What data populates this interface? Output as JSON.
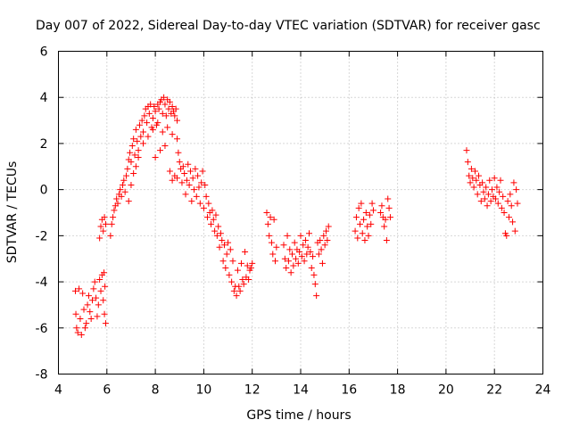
{
  "chart_data": {
    "type": "scatter",
    "title": "Day 007 of 2022, Sidereal Day-to-day VTEC variation (SDTVAR) for receiver gasc",
    "xlabel": "GPS time / hours",
    "ylabel": "SDTVAR / TECUs",
    "xlim": [
      4,
      24
    ],
    "ylim": [
      -8,
      6
    ],
    "xticks": [
      4,
      6,
      8,
      10,
      12,
      14,
      16,
      18,
      20,
      22,
      24
    ],
    "yticks": [
      -8,
      -6,
      -4,
      -2,
      0,
      2,
      4,
      6
    ],
    "grid": true,
    "marker": "plus",
    "marker_color": "#ff0000",
    "series": [
      {
        "name": "SDTVAR",
        "points": [
          [
            4.7,
            -4.4
          ],
          [
            4.72,
            -5.4
          ],
          [
            4.75,
            -6.0
          ],
          [
            4.8,
            -6.2
          ],
          [
            4.85,
            -4.3
          ],
          [
            4.9,
            -5.6
          ],
          [
            4.95,
            -6.3
          ],
          [
            5.0,
            -4.5
          ],
          [
            5.05,
            -5.2
          ],
          [
            5.1,
            -6.0
          ],
          [
            5.15,
            -5.8
          ],
          [
            5.2,
            -5.0
          ],
          [
            5.25,
            -4.6
          ],
          [
            5.3,
            -5.3
          ],
          [
            5.35,
            -5.6
          ],
          [
            5.4,
            -4.8
          ],
          [
            5.45,
            -4.3
          ],
          [
            5.5,
            -4.0
          ],
          [
            5.55,
            -4.7
          ],
          [
            5.6,
            -5.5
          ],
          [
            5.65,
            -5.0
          ],
          [
            5.7,
            -3.9
          ],
          [
            5.75,
            -4.4
          ],
          [
            5.8,
            -3.7
          ],
          [
            5.85,
            -4.8
          ],
          [
            5.9,
            -5.4
          ],
          [
            5.95,
            -5.8
          ],
          [
            5.88,
            -3.6
          ],
          [
            5.92,
            -4.2
          ],
          [
            5.7,
            -2.1
          ],
          [
            5.75,
            -1.6
          ],
          [
            5.8,
            -1.3
          ],
          [
            5.85,
            -1.8
          ],
          [
            5.9,
            -1.2
          ],
          [
            5.95,
            -1.5
          ],
          [
            6.15,
            -2.0
          ],
          [
            6.2,
            -1.5
          ],
          [
            6.25,
            -1.2
          ],
          [
            6.3,
            -0.9
          ],
          [
            6.35,
            -0.7
          ],
          [
            6.4,
            -0.4
          ],
          [
            6.45,
            -0.6
          ],
          [
            6.5,
            -0.2
          ],
          [
            6.55,
            0.0
          ],
          [
            6.6,
            -0.3
          ],
          [
            6.65,
            0.2
          ],
          [
            6.7,
            0.4
          ],
          [
            6.75,
            -0.1
          ],
          [
            6.8,
            0.6
          ],
          [
            6.85,
            0.9
          ],
          [
            6.9,
            1.3
          ],
          [
            6.95,
            1.6
          ],
          [
            7.0,
            1.2
          ],
          [
            7.05,
            1.9
          ],
          [
            7.1,
            2.2
          ],
          [
            7.15,
            1.5
          ],
          [
            7.2,
            2.6
          ],
          [
            7.25,
            2.1
          ],
          [
            7.3,
            1.4
          ],
          [
            7.35,
            2.8
          ],
          [
            7.4,
            2.3
          ],
          [
            7.45,
            3.0
          ],
          [
            7.5,
            2.5
          ],
          [
            7.55,
            3.2
          ],
          [
            7.6,
            3.5
          ],
          [
            7.65,
            2.9
          ],
          [
            7.7,
            3.6
          ],
          [
            7.75,
            3.3
          ],
          [
            7.8,
            3.7
          ],
          [
            7.85,
            2.7
          ],
          [
            7.9,
            3.1
          ],
          [
            7.95,
            3.6
          ],
          [
            8.0,
            3.4
          ],
          [
            8.05,
            2.8
          ],
          [
            8.1,
            3.7
          ],
          [
            8.15,
            3.5
          ],
          [
            8.2,
            3.8
          ],
          [
            8.25,
            3.9
          ],
          [
            8.3,
            3.3
          ],
          [
            8.35,
            4.0
          ],
          [
            8.4,
            3.7
          ],
          [
            8.45,
            3.2
          ],
          [
            8.5,
            3.9
          ],
          [
            8.55,
            3.5
          ],
          [
            8.6,
            3.8
          ],
          [
            8.65,
            3.3
          ],
          [
            8.7,
            3.6
          ],
          [
            8.75,
            3.4
          ],
          [
            8.8,
            3.2
          ],
          [
            8.85,
            3.5
          ],
          [
            8.9,
            3.0
          ],
          [
            7.3,
            1.7
          ],
          [
            7.5,
            2.0
          ],
          [
            7.7,
            2.3
          ],
          [
            7.9,
            2.6
          ],
          [
            8.1,
            2.9
          ],
          [
            8.3,
            2.5
          ],
          [
            8.5,
            2.7
          ],
          [
            8.7,
            2.4
          ],
          [
            8.9,
            2.2
          ],
          [
            8.0,
            1.4
          ],
          [
            8.2,
            1.7
          ],
          [
            8.4,
            1.9
          ],
          [
            8.6,
            0.8
          ],
          [
            8.7,
            0.4
          ],
          [
            8.8,
            0.6
          ],
          [
            8.9,
            0.5
          ],
          [
            6.9,
            -0.5
          ],
          [
            7.0,
            0.2
          ],
          [
            7.1,
            0.7
          ],
          [
            7.2,
            1.0
          ],
          [
            8.95,
            1.6
          ],
          [
            9.0,
            1.2
          ],
          [
            9.05,
            0.9
          ],
          [
            9.1,
            0.3
          ],
          [
            9.15,
            1.0
          ],
          [
            9.2,
            0.7
          ],
          [
            9.25,
            -0.2
          ],
          [
            9.3,
            0.4
          ],
          [
            9.35,
            1.1
          ],
          [
            9.4,
            0.2
          ],
          [
            9.45,
            0.8
          ],
          [
            9.5,
            -0.5
          ],
          [
            9.55,
            0.5
          ],
          [
            9.6,
            0.0
          ],
          [
            9.65,
            0.9
          ],
          [
            9.7,
            -0.3
          ],
          [
            9.75,
            0.6
          ],
          [
            9.8,
            0.1
          ],
          [
            9.85,
            -0.6
          ],
          [
            9.9,
            0.3
          ],
          [
            9.95,
            0.8
          ],
          [
            10.0,
            -0.8
          ],
          [
            10.05,
            0.2
          ],
          [
            10.1,
            -0.3
          ],
          [
            10.15,
            -1.2
          ],
          [
            10.2,
            -0.6
          ],
          [
            10.25,
            -1.0
          ],
          [
            10.3,
            -1.5
          ],
          [
            10.35,
            -0.9
          ],
          [
            10.4,
            -1.3
          ],
          [
            10.45,
            -1.8
          ],
          [
            10.5,
            -1.1
          ],
          [
            10.55,
            -2.0
          ],
          [
            10.6,
            -1.6
          ],
          [
            10.65,
            -2.5
          ],
          [
            10.7,
            -1.9
          ],
          [
            10.75,
            -2.2
          ],
          [
            10.8,
            -3.1
          ],
          [
            10.85,
            -2.4
          ],
          [
            10.9,
            -3.4
          ],
          [
            10.95,
            -2.8
          ],
          [
            11.0,
            -2.3
          ],
          [
            11.05,
            -3.7
          ],
          [
            11.1,
            -2.6
          ],
          [
            11.15,
            -4.0
          ],
          [
            11.2,
            -3.1
          ],
          [
            11.25,
            -4.4
          ],
          [
            11.3,
            -4.2
          ],
          [
            11.35,
            -4.6
          ],
          [
            11.4,
            -3.5
          ],
          [
            11.45,
            -4.2
          ],
          [
            11.5,
            -4.4
          ],
          [
            11.55,
            -3.2
          ],
          [
            11.6,
            -3.9
          ],
          [
            11.65,
            -4.1
          ],
          [
            11.7,
            -2.7
          ],
          [
            11.75,
            -3.8
          ],
          [
            11.8,
            -3.3
          ],
          [
            11.85,
            -3.9
          ],
          [
            11.9,
            -3.5
          ],
          [
            11.95,
            -3.4
          ],
          [
            12.0,
            -3.2
          ],
          [
            12.6,
            -1.0
          ],
          [
            12.65,
            -1.5
          ],
          [
            12.7,
            -2.0
          ],
          [
            12.75,
            -1.2
          ],
          [
            12.8,
            -2.3
          ],
          [
            12.85,
            -2.8
          ],
          [
            12.9,
            -1.3
          ],
          [
            12.95,
            -3.1
          ],
          [
            13.0,
            -2.5
          ],
          [
            13.3,
            -2.4
          ],
          [
            13.35,
            -3.0
          ],
          [
            13.4,
            -3.4
          ],
          [
            13.45,
            -2.0
          ],
          [
            13.5,
            -3.1
          ],
          [
            13.55,
            -2.6
          ],
          [
            13.6,
            -3.6
          ],
          [
            13.65,
            -2.8
          ],
          [
            13.7,
            -3.3
          ],
          [
            13.75,
            -2.3
          ],
          [
            13.8,
            -3.0
          ],
          [
            13.85,
            -2.6
          ],
          [
            13.9,
            -3.2
          ],
          [
            13.95,
            -2.7
          ],
          [
            14.0,
            -2.0
          ],
          [
            14.05,
            -2.9
          ],
          [
            14.1,
            -2.4
          ],
          [
            14.15,
            -3.1
          ],
          [
            14.2,
            -2.2
          ],
          [
            14.25,
            -2.8
          ],
          [
            14.3,
            -2.5
          ],
          [
            14.35,
            -1.9
          ],
          [
            14.4,
            -2.7
          ],
          [
            14.45,
            -3.4
          ],
          [
            14.5,
            -2.9
          ],
          [
            14.55,
            -3.7
          ],
          [
            14.6,
            -4.1
          ],
          [
            14.65,
            -4.6
          ],
          [
            14.7,
            -2.3
          ],
          [
            14.75,
            -2.8
          ],
          [
            14.8,
            -2.2
          ],
          [
            14.85,
            -2.6
          ],
          [
            14.9,
            -3.2
          ],
          [
            14.95,
            -2.0
          ],
          [
            15.0,
            -2.4
          ],
          [
            15.05,
            -1.8
          ],
          [
            15.1,
            -2.2
          ],
          [
            15.15,
            -1.6
          ],
          [
            16.25,
            -1.8
          ],
          [
            16.3,
            -1.2
          ],
          [
            16.35,
            -2.1
          ],
          [
            16.4,
            -0.8
          ],
          [
            16.45,
            -1.5
          ],
          [
            16.5,
            -0.6
          ],
          [
            16.55,
            -1.9
          ],
          [
            16.6,
            -1.3
          ],
          [
            16.65,
            -2.2
          ],
          [
            16.7,
            -1.0
          ],
          [
            16.75,
            -1.6
          ],
          [
            16.8,
            -2.0
          ],
          [
            16.85,
            -1.1
          ],
          [
            16.9,
            -1.5
          ],
          [
            16.95,
            -0.6
          ],
          [
            17.0,
            -0.9
          ],
          [
            17.3,
            -1.0
          ],
          [
            17.35,
            -0.7
          ],
          [
            17.4,
            -1.2
          ],
          [
            17.45,
            -1.6
          ],
          [
            17.5,
            -1.3
          ],
          [
            17.55,
            -2.2
          ],
          [
            17.6,
            -0.4
          ],
          [
            17.65,
            -0.8
          ],
          [
            17.7,
            -1.2
          ],
          [
            20.85,
            1.7
          ],
          [
            20.9,
            1.2
          ],
          [
            20.95,
            0.6
          ],
          [
            21.0,
            0.3
          ],
          [
            21.05,
            0.9
          ],
          [
            21.1,
            0.5
          ],
          [
            21.15,
            0.1
          ],
          [
            21.2,
            0.8
          ],
          [
            21.25,
            0.4
          ],
          [
            21.3,
            -0.2
          ],
          [
            21.35,
            0.6
          ],
          [
            21.4,
            0.2
          ],
          [
            21.45,
            -0.5
          ],
          [
            21.5,
            0.3
          ],
          [
            21.55,
            -0.1
          ],
          [
            21.6,
            -0.4
          ],
          [
            21.65,
            0.1
          ],
          [
            21.7,
            -0.7
          ],
          [
            21.75,
            -0.2
          ],
          [
            21.8,
            0.4
          ],
          [
            21.85,
            -0.5
          ],
          [
            21.9,
            0.0
          ],
          [
            21.95,
            -0.3
          ],
          [
            22.0,
            0.5
          ],
          [
            22.05,
            -0.4
          ],
          [
            22.1,
            0.1
          ],
          [
            22.15,
            -0.6
          ],
          [
            22.2,
            -0.1
          ],
          [
            22.25,
            0.4
          ],
          [
            22.3,
            -0.8
          ],
          [
            22.35,
            -0.3
          ],
          [
            22.4,
            -1.0
          ],
          [
            22.45,
            -1.9
          ],
          [
            22.5,
            -2.0
          ],
          [
            22.55,
            -0.5
          ],
          [
            22.6,
            -1.2
          ],
          [
            22.65,
            -0.2
          ],
          [
            22.7,
            -0.7
          ],
          [
            22.75,
            -1.4
          ],
          [
            22.8,
            0.3
          ],
          [
            22.85,
            -1.8
          ],
          [
            22.9,
            0.0
          ],
          [
            22.95,
            -0.6
          ]
        ]
      }
    ]
  }
}
